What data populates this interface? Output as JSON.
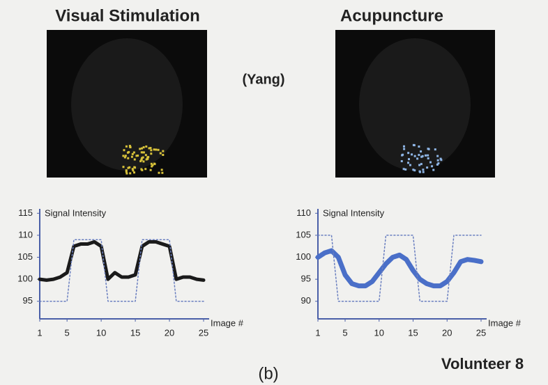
{
  "figure": {
    "left_title": "Visual  Stimulation",
    "right_title": "Acupuncture",
    "center_label": "(Yang)",
    "panel_label": "(b)",
    "subject": "Volunteer 8"
  },
  "chart_data": [
    {
      "type": "line",
      "y_label": "Signal Intensity",
      "x_label": "Image #",
      "x": [
        1,
        2,
        3,
        4,
        5,
        6,
        7,
        8,
        9,
        10,
        11,
        12,
        13,
        14,
        15,
        16,
        17,
        18,
        19,
        20,
        21,
        22,
        23,
        24,
        25
      ],
      "xlim": [
        1,
        25
      ],
      "xticks": [
        1,
        5,
        10,
        15,
        20,
        25
      ],
      "ylim": [
        91,
        116
      ],
      "yticks": [
        95,
        100,
        105,
        110,
        115
      ],
      "series": [
        {
          "color": "#1a1a1a",
          "style": "solid",
          "values": [
            100,
            99.8,
            100,
            100.5,
            101.5,
            107.5,
            108,
            108,
            108.5,
            107.5,
            100,
            101.5,
            100.5,
            100.5,
            101,
            107.5,
            108.5,
            108.5,
            108,
            107.5,
            100,
            100.5,
            100.5,
            100,
            99.8
          ]
        },
        {
          "color": "#6a7fc0",
          "style": "dotted",
          "values": [
            95,
            95,
            95,
            95,
            95,
            109,
            109,
            109,
            109,
            109,
            95,
            95,
            95,
            95,
            95,
            109,
            109,
            109,
            109,
            109,
            95,
            95,
            95,
            95,
            95
          ]
        }
      ]
    },
    {
      "type": "line",
      "y_label": "Signal Intensity",
      "x_label": "Image #",
      "x": [
        1,
        2,
        3,
        4,
        5,
        6,
        7,
        8,
        9,
        10,
        11,
        12,
        13,
        14,
        15,
        16,
        17,
        18,
        19,
        20,
        21,
        22,
        23,
        24,
        25
      ],
      "xlim": [
        1,
        25
      ],
      "xticks": [
        1,
        5,
        10,
        15,
        20,
        25
      ],
      "ylim": [
        86,
        111
      ],
      "yticks": [
        90,
        95,
        100,
        105,
        110
      ],
      "series": [
        {
          "color": "#4a6fc8",
          "style": "solid",
          "values": [
            100,
            101,
            101.5,
            100,
            96,
            94,
            93.5,
            93.5,
            94.5,
            96.5,
            98.5,
            100,
            100.5,
            99.5,
            97,
            95,
            94,
            93.5,
            93.5,
            94.5,
            96.5,
            99,
            99.5,
            99.3,
            99
          ]
        },
        {
          "color": "#6a7fc0",
          "style": "dotted",
          "values": [
            105,
            105,
            105,
            90,
            90,
            90,
            90,
            90,
            90,
            90,
            105,
            105,
            105,
            105,
            105,
            90,
            90,
            90,
            90,
            90,
            105,
            105,
            105,
            105,
            105
          ]
        }
      ]
    }
  ]
}
